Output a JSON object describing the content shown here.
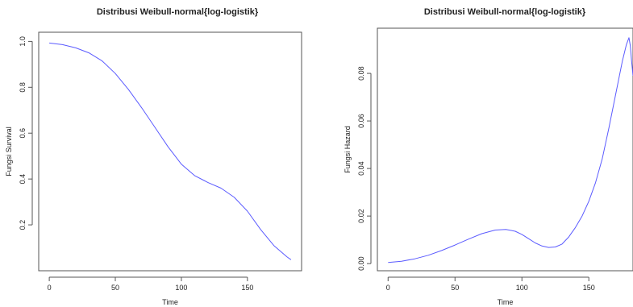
{
  "chart_data": [
    {
      "type": "line",
      "title": "Distribusi Weibull-normal{log-logistik}",
      "xlabel": "Time",
      "ylabel": "Fungsi Survival",
      "xlim": [
        -8,
        191
      ],
      "ylim": [
        0.0,
        1.04
      ],
      "xticks": [
        0,
        50,
        100,
        150
      ],
      "yticks": [
        0.2,
        0.4,
        0.6,
        0.8,
        1.0
      ],
      "ytick_labels": [
        "0.2",
        "0.4",
        "0.6",
        "0.8",
        "1.0"
      ],
      "grid": false,
      "color": "#5b5bff",
      "series": [
        {
          "x": [
            0,
            10,
            20,
            30,
            40,
            50,
            60,
            70,
            80,
            90,
            100,
            110,
            120,
            130,
            140,
            150,
            160,
            170,
            180,
            183
          ],
          "values": [
            0.993,
            0.986,
            0.972,
            0.95,
            0.915,
            0.86,
            0.79,
            0.71,
            0.625,
            0.54,
            0.465,
            0.415,
            0.385,
            0.36,
            0.32,
            0.26,
            0.18,
            0.11,
            0.06,
            0.048
          ]
        }
      ]
    },
    {
      "type": "line",
      "title": "Distribusi Weibull-normal{log-logistik}",
      "xlabel": "Time",
      "ylabel": "Fungsi Hazard",
      "xlim": [
        -8,
        183
      ],
      "ylim": [
        -0.003,
        0.099
      ],
      "xticks": [
        0,
        50,
        100,
        150
      ],
      "yticks": [
        0.0,
        0.02,
        0.04,
        0.06,
        0.08
      ],
      "ytick_labels": [
        "0.00",
        "0.02",
        "0.04",
        "0.06",
        "0.08"
      ],
      "grid": false,
      "color": "#5b5bff",
      "series": [
        {
          "x": [
            0,
            10,
            20,
            30,
            40,
            50,
            60,
            70,
            80,
            88,
            95,
            100,
            105,
            110,
            115,
            120,
            125,
            130,
            135,
            140,
            145,
            150,
            155,
            160,
            165,
            170,
            175,
            178,
            180,
            181,
            182,
            183
          ],
          "values": [
            0.0005,
            0.001,
            0.002,
            0.0035,
            0.0055,
            0.0078,
            0.0103,
            0.0126,
            0.0141,
            0.0144,
            0.0136,
            0.0123,
            0.0105,
            0.0087,
            0.0074,
            0.0068,
            0.007,
            0.0082,
            0.0112,
            0.0152,
            0.02,
            0.0262,
            0.034,
            0.044,
            0.057,
            0.071,
            0.085,
            0.092,
            0.095,
            0.0915,
            0.085,
            0.079
          ]
        }
      ]
    }
  ]
}
